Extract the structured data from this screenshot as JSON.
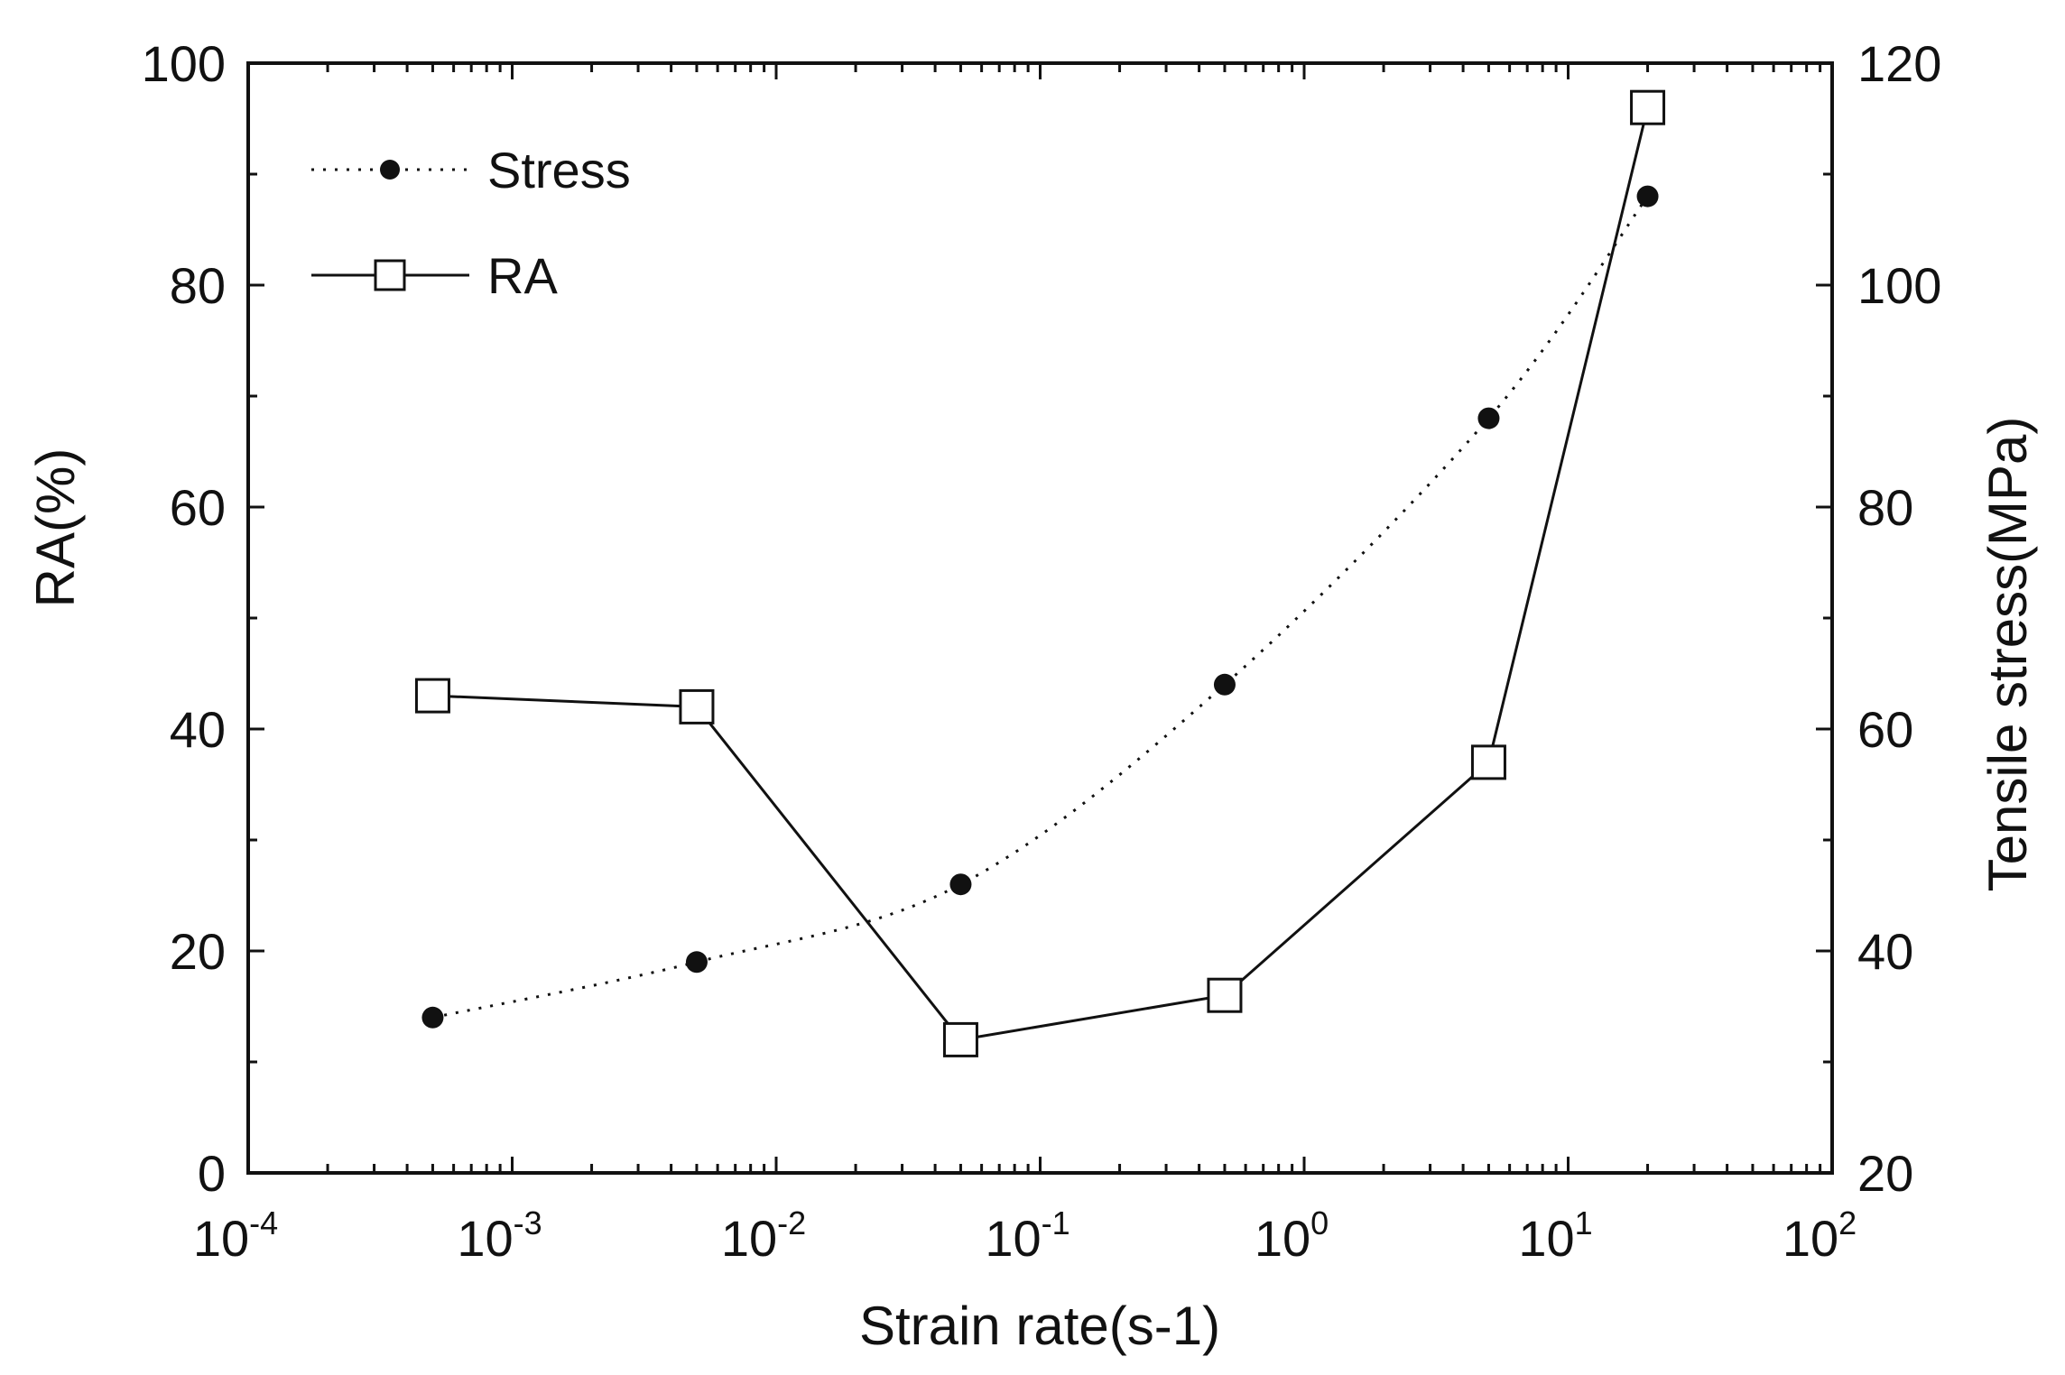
{
  "chart_data": {
    "type": "line",
    "title": "",
    "xlabel": "Strain rate(s-1)",
    "ylabel": "RA(%)",
    "y2label": "Tensile stress(MPa)",
    "xscale": "log",
    "xlim": [
      0.0001,
      100
    ],
    "ylim": [
      0,
      100
    ],
    "y2lim": [
      20,
      120
    ],
    "xticks": [
      {
        "value": 0.0001,
        "base": "10",
        "exp": "-4"
      },
      {
        "value": 0.001,
        "base": "10",
        "exp": "-3"
      },
      {
        "value": 0.01,
        "base": "10",
        "exp": "-2"
      },
      {
        "value": 0.1,
        "base": "10",
        "exp": "-1"
      },
      {
        "value": 1,
        "base": "10",
        "exp": "0"
      },
      {
        "value": 10,
        "base": "10",
        "exp": "1"
      },
      {
        "value": 100,
        "base": "10",
        "exp": "2"
      }
    ],
    "yticks": [
      0,
      20,
      40,
      60,
      80,
      100
    ],
    "y2ticks": [
      20,
      40,
      60,
      80,
      100,
      120
    ],
    "legend_position": "top-left",
    "grid": false,
    "series": [
      {
        "name": "Stress",
        "axis": "right",
        "style": "dotted-line-filled-circle",
        "color": "#111111",
        "x": [
          0.0005,
          0.005,
          0.05,
          0.5,
          5,
          20
        ],
        "values": [
          34,
          39,
          46,
          64,
          88,
          108
        ]
      },
      {
        "name": "RA",
        "axis": "left",
        "style": "solid-line-open-square",
        "color": "#111111",
        "x": [
          0.0005,
          0.005,
          0.05,
          0.5,
          5,
          20
        ],
        "values": [
          43,
          42,
          12,
          16,
          37,
          96
        ]
      }
    ]
  }
}
